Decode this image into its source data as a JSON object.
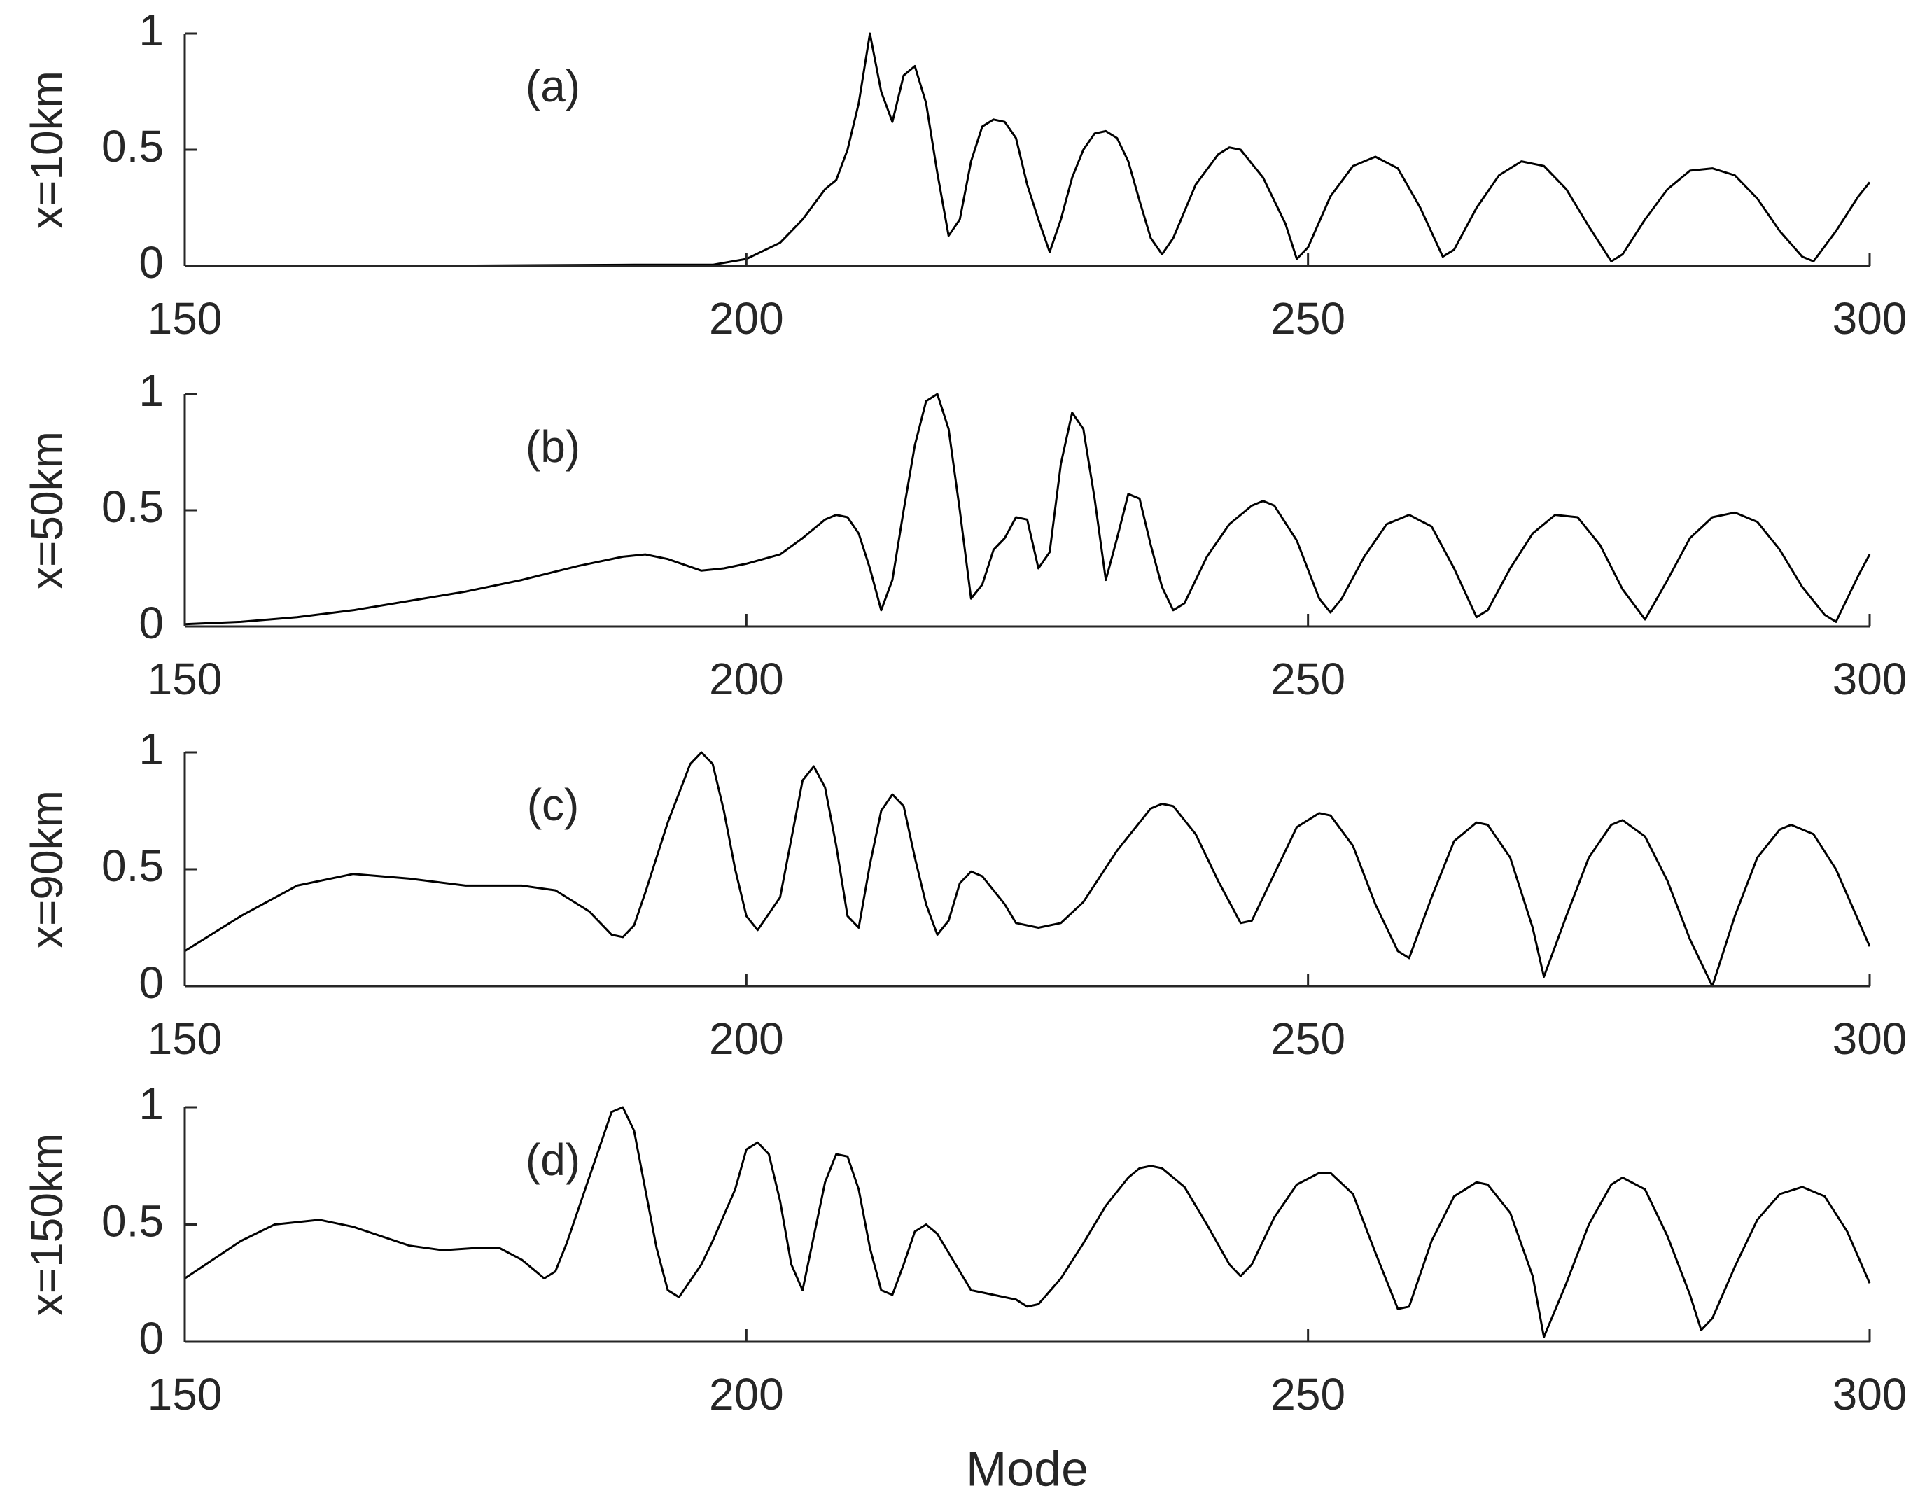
{
  "chart_data": [
    {
      "type": "line",
      "ylabel": "x=10km",
      "annotation": "(a)",
      "xlim": [
        150,
        300
      ],
      "ylim": [
        0,
        1
      ],
      "xticks": [
        150,
        200,
        250,
        300
      ],
      "yticks": [
        0,
        0.5,
        1
      ],
      "color": "#000000",
      "x": [
        150,
        170,
        190,
        197,
        200,
        203,
        205,
        207,
        208,
        209,
        210,
        211,
        212,
        213,
        214,
        215,
        216,
        217,
        218,
        219,
        220,
        221,
        222,
        223,
        224,
        225,
        226,
        227,
        228,
        229,
        230,
        231,
        232,
        233,
        234,
        235,
        236,
        237,
        238,
        240,
        242,
        243,
        244,
        246,
        248,
        249,
        250,
        252,
        254,
        256,
        258,
        260,
        262,
        263,
        265,
        267,
        269,
        271,
        273,
        275,
        277,
        278,
        280,
        282,
        284,
        286,
        288,
        290,
        292,
        294,
        295,
        297,
        299,
        300
      ],
      "values": [
        0,
        0,
        0.005,
        0.005,
        0.03,
        0.1,
        0.2,
        0.33,
        0.37,
        0.5,
        0.7,
        1.0,
        0.75,
        0.62,
        0.82,
        0.86,
        0.7,
        0.4,
        0.13,
        0.2,
        0.45,
        0.6,
        0.63,
        0.62,
        0.55,
        0.35,
        0.2,
        0.06,
        0.2,
        0.38,
        0.5,
        0.57,
        0.58,
        0.55,
        0.45,
        0.28,
        0.12,
        0.05,
        0.12,
        0.35,
        0.48,
        0.51,
        0.5,
        0.38,
        0.18,
        0.03,
        0.08,
        0.3,
        0.43,
        0.47,
        0.42,
        0.25,
        0.04,
        0.07,
        0.25,
        0.39,
        0.45,
        0.43,
        0.33,
        0.17,
        0.02,
        0.05,
        0.2,
        0.33,
        0.41,
        0.42,
        0.39,
        0.29,
        0.15,
        0.04,
        0.02,
        0.15,
        0.3,
        0.36
      ]
    },
    {
      "type": "line",
      "ylabel": "x=50km",
      "annotation": "(b)",
      "xlim": [
        150,
        300
      ],
      "ylim": [
        0,
        1
      ],
      "xticks": [
        150,
        200,
        250,
        300
      ],
      "yticks": [
        0,
        0.5,
        1
      ],
      "color": "#000000",
      "x": [
        150,
        155,
        160,
        165,
        170,
        175,
        180,
        185,
        189,
        191,
        193,
        196,
        198,
        200,
        203,
        205,
        207,
        208,
        209,
        210,
        211,
        212,
        213,
        214,
        215,
        216,
        217,
        218,
        219,
        220,
        221,
        222,
        223,
        224,
        225,
        226,
        227,
        228,
        229,
        230,
        231,
        232,
        233,
        234,
        235,
        236,
        237,
        238,
        239,
        241,
        243,
        245,
        246,
        247,
        249,
        251,
        252,
        253,
        255,
        257,
        259,
        261,
        263,
        265,
        266,
        268,
        270,
        272,
        274,
        276,
        278,
        280,
        282,
        284,
        286,
        288,
        290,
        292,
        294,
        296,
        297,
        299,
        300
      ],
      "values": [
        0.01,
        0.02,
        0.04,
        0.07,
        0.11,
        0.15,
        0.2,
        0.26,
        0.3,
        0.31,
        0.29,
        0.24,
        0.25,
        0.27,
        0.31,
        0.38,
        0.46,
        0.48,
        0.47,
        0.4,
        0.25,
        0.07,
        0.2,
        0.5,
        0.78,
        0.97,
        1.0,
        0.85,
        0.5,
        0.12,
        0.18,
        0.33,
        0.38,
        0.47,
        0.46,
        0.25,
        0.32,
        0.7,
        0.92,
        0.85,
        0.55,
        0.2,
        0.38,
        0.57,
        0.55,
        0.35,
        0.17,
        0.07,
        0.1,
        0.3,
        0.44,
        0.52,
        0.54,
        0.52,
        0.37,
        0.12,
        0.06,
        0.12,
        0.3,
        0.44,
        0.48,
        0.43,
        0.25,
        0.04,
        0.07,
        0.25,
        0.4,
        0.48,
        0.47,
        0.35,
        0.16,
        0.03,
        0.2,
        0.38,
        0.47,
        0.49,
        0.45,
        0.33,
        0.17,
        0.05,
        0.02,
        0.22,
        0.31
      ]
    },
    {
      "type": "line",
      "ylabel": "x=90km",
      "annotation": "(c)",
      "xlim": [
        150,
        300
      ],
      "ylim": [
        0,
        1
      ],
      "xticks": [
        150,
        200,
        250,
        300
      ],
      "yticks": [
        0,
        0.5,
        1
      ],
      "color": "#000000",
      "x": [
        150,
        155,
        160,
        165,
        170,
        175,
        180,
        183,
        186,
        188,
        189,
        190,
        191,
        193,
        195,
        196,
        197,
        198,
        199,
        200,
        201,
        203,
        205,
        206,
        207,
        208,
        209,
        210,
        211,
        212,
        213,
        214,
        215,
        216,
        217,
        218,
        219,
        220,
        221,
        223,
        224,
        226,
        228,
        230,
        233,
        236,
        237,
        238,
        240,
        242,
        244,
        245,
        247,
        249,
        251,
        252,
        254,
        256,
        258,
        259,
        261,
        263,
        265,
        266,
        268,
        270,
        271,
        273,
        275,
        277,
        278,
        280,
        282,
        284,
        286,
        288,
        290,
        292,
        293,
        295,
        297,
        299,
        300
      ],
      "values": [
        0.15,
        0.3,
        0.43,
        0.48,
        0.46,
        0.43,
        0.43,
        0.41,
        0.32,
        0.22,
        0.21,
        0.26,
        0.4,
        0.7,
        0.95,
        1.0,
        0.95,
        0.75,
        0.5,
        0.3,
        0.24,
        0.38,
        0.88,
        0.94,
        0.85,
        0.6,
        0.3,
        0.25,
        0.52,
        0.75,
        0.82,
        0.77,
        0.55,
        0.35,
        0.22,
        0.28,
        0.44,
        0.49,
        0.47,
        0.35,
        0.27,
        0.25,
        0.27,
        0.36,
        0.58,
        0.76,
        0.78,
        0.77,
        0.65,
        0.45,
        0.27,
        0.28,
        0.48,
        0.68,
        0.74,
        0.73,
        0.6,
        0.35,
        0.15,
        0.12,
        0.38,
        0.62,
        0.7,
        0.69,
        0.55,
        0.25,
        0.04,
        0.3,
        0.55,
        0.69,
        0.71,
        0.64,
        0.45,
        0.2,
        0.0,
        0.3,
        0.55,
        0.67,
        0.69,
        0.65,
        0.5,
        0.28,
        0.17
      ]
    },
    {
      "type": "line",
      "ylabel": "x=150km",
      "annotation": "(d)",
      "xlabel": "Mode",
      "xlim": [
        150,
        300
      ],
      "ylim": [
        0,
        1
      ],
      "xticks": [
        150,
        200,
        250,
        300
      ],
      "yticks": [
        0,
        0.5,
        1
      ],
      "color": "#000000",
      "x": [
        150,
        155,
        158,
        162,
        165,
        170,
        173,
        176,
        178,
        180,
        182,
        183,
        184,
        186,
        188,
        189,
        190,
        191,
        192,
        193,
        194,
        196,
        197,
        199,
        200,
        201,
        202,
        203,
        204,
        205,
        207,
        208,
        209,
        210,
        211,
        212,
        213,
        214,
        215,
        216,
        217,
        219,
        220,
        222,
        224,
        225,
        226,
        228,
        230,
        232,
        234,
        235,
        236,
        237,
        239,
        241,
        243,
        244,
        245,
        247,
        249,
        251,
        252,
        254,
        256,
        258,
        259,
        261,
        263,
        265,
        266,
        268,
        270,
        271,
        273,
        275,
        277,
        278,
        280,
        282,
        284,
        285,
        286,
        288,
        290,
        292,
        294,
        296,
        298,
        300
      ],
      "values": [
        0.27,
        0.43,
        0.5,
        0.52,
        0.49,
        0.41,
        0.39,
        0.4,
        0.4,
        0.35,
        0.27,
        0.3,
        0.42,
        0.7,
        0.98,
        1.0,
        0.9,
        0.65,
        0.4,
        0.22,
        0.19,
        0.33,
        0.43,
        0.65,
        0.82,
        0.85,
        0.8,
        0.6,
        0.33,
        0.22,
        0.68,
        0.8,
        0.79,
        0.65,
        0.4,
        0.22,
        0.2,
        0.33,
        0.47,
        0.5,
        0.46,
        0.3,
        0.22,
        0.2,
        0.18,
        0.15,
        0.16,
        0.27,
        0.42,
        0.58,
        0.7,
        0.74,
        0.75,
        0.74,
        0.66,
        0.5,
        0.33,
        0.28,
        0.33,
        0.53,
        0.67,
        0.72,
        0.72,
        0.63,
        0.38,
        0.14,
        0.15,
        0.43,
        0.62,
        0.68,
        0.67,
        0.55,
        0.28,
        0.02,
        0.25,
        0.5,
        0.67,
        0.7,
        0.65,
        0.45,
        0.2,
        0.05,
        0.1,
        0.32,
        0.52,
        0.63,
        0.66,
        0.62,
        0.47,
        0.25
      ]
    }
  ]
}
